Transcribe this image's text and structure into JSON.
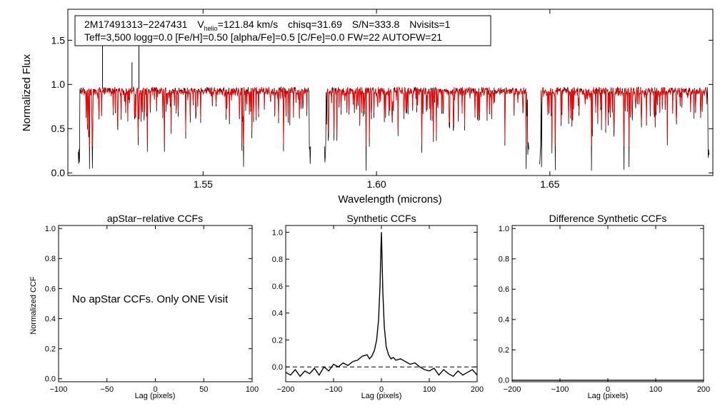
{
  "chart_data": [
    {
      "type": "line",
      "name": "spectrum",
      "ylabel": "Normalized Flux",
      "xlabel": "Wavelength (microns)",
      "xlim": [
        1.511,
        1.697
      ],
      "ylim": [
        -0.03,
        1.85
      ],
      "xticks": [
        1.55,
        1.6,
        1.65
      ],
      "xtick_labels": [
        "1.55",
        "1.60",
        "1.65"
      ],
      "yticks": [
        0.0,
        0.5,
        1.0,
        1.5
      ],
      "ytick_labels": [
        "0.0",
        "0.5",
        "1.0",
        "1.5"
      ],
      "chips": [
        [
          1.514,
          1.581
        ],
        [
          1.585,
          1.644
        ],
        [
          1.647,
          1.696
        ]
      ],
      "series": [
        {
          "name": "observed spectrum",
          "color": "#000000"
        },
        {
          "name": "best-fit synthetic",
          "color": "#ff0000"
        }
      ],
      "annotation": {
        "star_id": "2M17491313−2247431",
        "vhelio_prefix": "V",
        "vhelio_sub": "helio",
        "vhelio_value": "=121.84 km/s",
        "chisq": "chisq=31.69",
        "snr": "S/N=333.8",
        "nvisits": "Nvisits=1",
        "line2": "Teff=3,500 logg=0.0 [Fe/H]=0.50 [alpha/Fe]=0.5 [C/Fe]=0.0 FW=22 AUTOFW=21"
      }
    },
    {
      "type": "line",
      "name": "apstar-ccf",
      "title": "apStar−relative CCFs",
      "xlabel": "Lag (pixels)",
      "ylabel": "Normalized CCF",
      "xlim": [
        -100,
        100
      ],
      "ylim": [
        -0.02,
        1.02
      ],
      "xticks": [
        -100,
        -50,
        0,
        50,
        100
      ],
      "xtick_labels": [
        "−100",
        "−50",
        "0",
        "50",
        "100"
      ],
      "yticks": [
        0.0,
        0.2,
        0.4,
        0.6,
        0.8,
        1.0
      ],
      "ytick_labels": [
        "0.0",
        "0.2",
        "0.4",
        "0.6",
        "0.8",
        "1.0"
      ],
      "message": "No apStar CCFs.  Only ONE Visit"
    },
    {
      "type": "line",
      "name": "synthetic-ccf",
      "title": "Synthetic CCFs",
      "xlabel": "Lag (pixels)",
      "xlim": [
        -200,
        200
      ],
      "ylim": [
        -0.11,
        1.05
      ],
      "xticks": [
        -200,
        -100,
        0,
        100,
        200
      ],
      "xtick_labels": [
        "−200",
        "−100",
        "0",
        "100",
        "200"
      ],
      "yticks": [
        0.0,
        0.2,
        0.4,
        0.6,
        0.8,
        1.0
      ],
      "ytick_labels": [
        "0.0",
        "0.2",
        "0.4",
        "0.6",
        "0.8",
        "1.0"
      ],
      "baseline": 0.0,
      "x": [
        -200,
        -190,
        -180,
        -170,
        -160,
        -150,
        -140,
        -130,
        -120,
        -110,
        -100,
        -90,
        -80,
        -70,
        -60,
        -50,
        -40,
        -30,
        -25,
        -20,
        -15,
        -10,
        -6,
        -3,
        -1,
        0,
        1,
        3,
        6,
        10,
        15,
        20,
        25,
        30,
        40,
        50,
        60,
        70,
        80,
        90,
        100,
        110,
        120,
        130,
        140,
        150,
        160,
        170,
        180,
        190,
        200
      ],
      "y": [
        -0.04,
        -0.06,
        -0.02,
        -0.07,
        -0.03,
        -0.05,
        -0.01,
        -0.06,
        0.0,
        -0.03,
        0.02,
        0.0,
        0.03,
        0.01,
        0.04,
        0.05,
        0.08,
        0.09,
        0.06,
        0.08,
        0.12,
        0.2,
        0.35,
        0.6,
        0.88,
        1.0,
        0.85,
        0.55,
        0.3,
        0.15,
        0.09,
        0.06,
        0.07,
        0.05,
        0.06,
        0.04,
        0.02,
        0.03,
        0.0,
        -0.02,
        -0.03,
        -0.01,
        -0.06,
        -0.02,
        -0.05,
        -0.07,
        -0.03,
        -0.06,
        -0.04,
        -0.02,
        -0.06
      ]
    },
    {
      "type": "line",
      "name": "difference-ccf",
      "title": "Difference Synthetic CCFs",
      "xlabel": "Lag (pixels)",
      "xlim": [
        -200,
        200
      ],
      "ylim": [
        -0.01,
        1.02
      ],
      "xticks": [
        -200,
        -100,
        0,
        100,
        200
      ],
      "xtick_labels": [
        "−200",
        "−100",
        "0",
        "100",
        "200"
      ],
      "yticks": [
        0.0,
        0.2,
        0.4,
        0.6,
        0.8,
        1.0
      ],
      "ytick_labels": [
        "0.0",
        "0.2",
        "0.4",
        "0.6",
        "0.8",
        "1.0"
      ],
      "x": [
        -200,
        200
      ],
      "y": [
        0.0,
        0.0
      ]
    }
  ]
}
